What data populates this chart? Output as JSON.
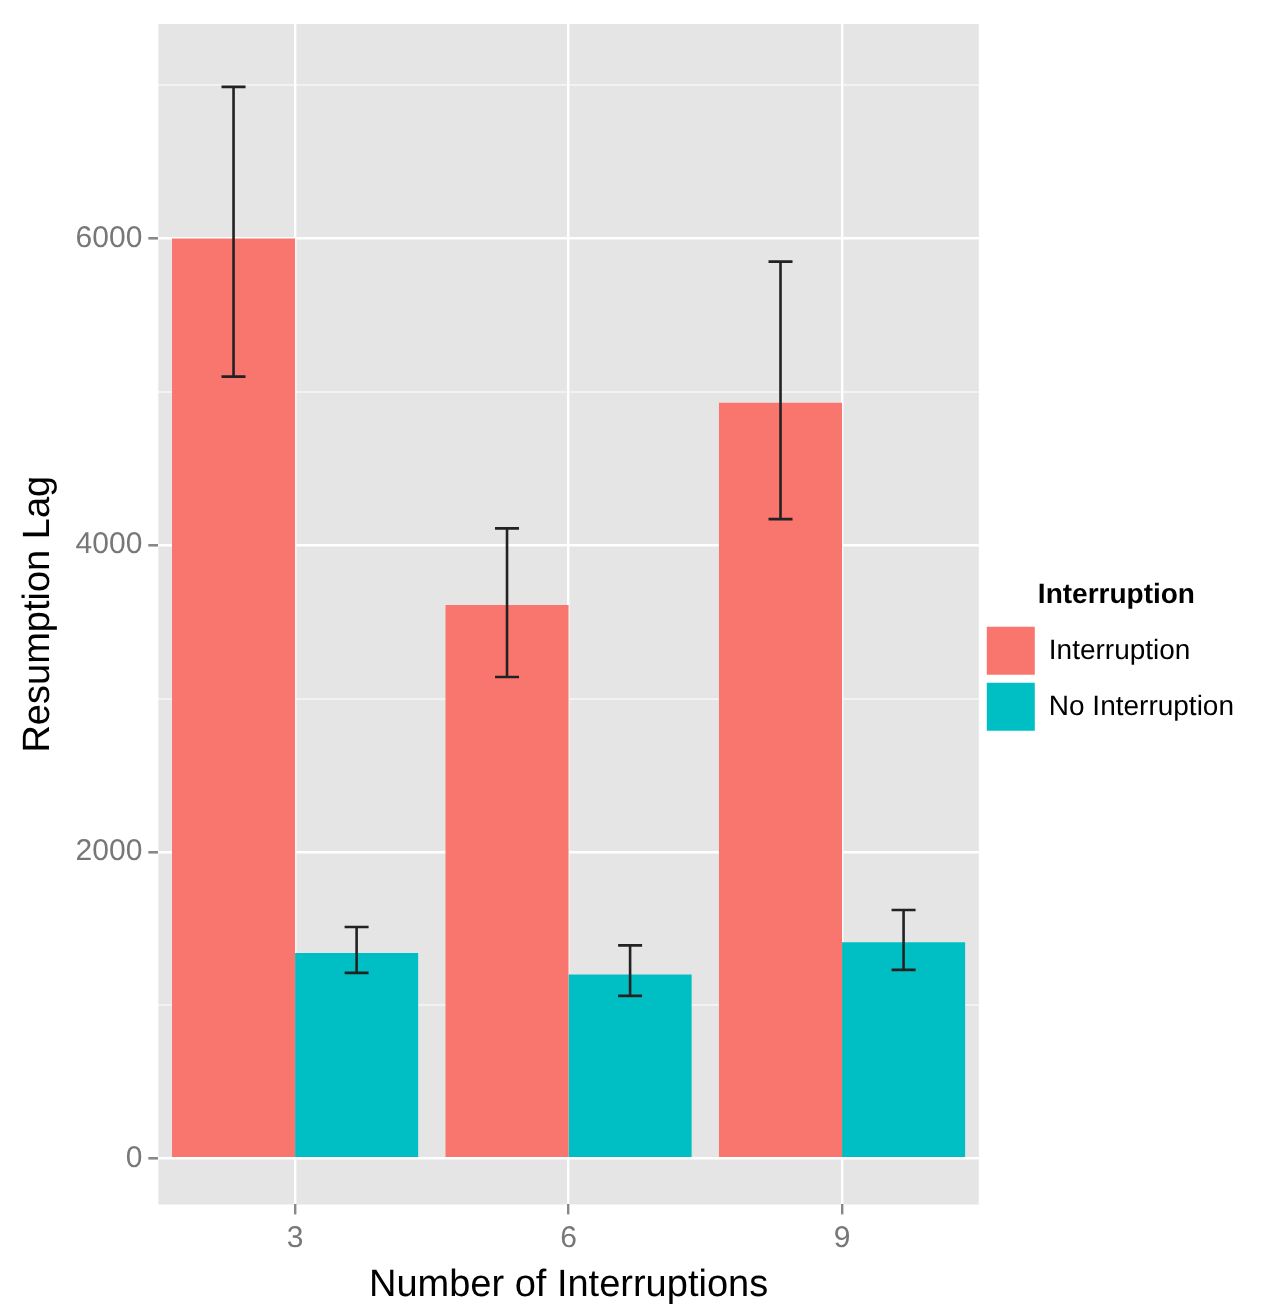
{
  "chart_data": {
    "type": "bar",
    "xlabel": "Number of Interruptions",
    "ylabel": "Resumption Lag",
    "legend_title": "Interruption",
    "categories": [
      "3",
      "6",
      "9"
    ],
    "series": [
      {
        "name": "Interruption",
        "color": "#f8766d",
        "values": [
          6000,
          3610,
          4930
        ],
        "errors": [
          [
            5100,
            6990
          ],
          [
            3140,
            4110
          ],
          [
            4170,
            5850
          ]
        ]
      },
      {
        "name": "No Interruption",
        "color": "#00bfc4",
        "values": [
          1340,
          1200,
          1410
        ],
        "errors": [
          [
            1210,
            1510
          ],
          [
            1060,
            1390
          ],
          [
            1230,
            1620
          ]
        ]
      }
    ],
    "ylim": [
      -300,
      7400
    ],
    "yticks": [
      0,
      {
        "value": 1000,
        "label": null
      },
      2000,
      {
        "value": 3000,
        "label": null
      },
      4000,
      {
        "value": 5000,
        "label": null
      },
      6000,
      {
        "value": 7000,
        "label": null
      }
    ],
    "grid": true,
    "legend": "right"
  }
}
